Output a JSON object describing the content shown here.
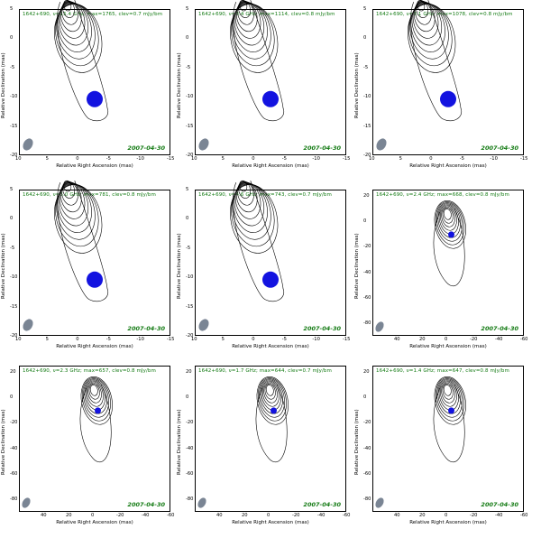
{
  "chart_data": [
    {
      "type": "contour",
      "header": "1642+690, ν=15.4 GHz; max=1765, clev=0.7 mJy/bm",
      "date": "2007-04-30",
      "xlabel": "Relative Right Ascension (mas)",
      "ylabel": "Relative Declination (mas)",
      "xticks": [
        "10",
        "5",
        "0",
        "-5",
        "-10",
        "-15"
      ],
      "yticks": [
        "5",
        "0",
        "-5",
        "-10",
        "-15",
        "-20"
      ],
      "xlim": [
        10,
        -15
      ],
      "ylim": [
        -20,
        5
      ],
      "core_at": [
        -2.5,
        -10.4
      ]
    },
    {
      "type": "contour",
      "header": "1642+690, ν=8.4 GHz; max=1114, clev=0.8 mJy/bm",
      "date": "2007-04-30",
      "xlabel": "Relative Right Ascension (mas)",
      "ylabel": "Relative Declination (mas)",
      "xticks": [
        "10",
        "5",
        "0",
        "-5",
        "-10",
        "-15"
      ],
      "yticks": [
        "5",
        "0",
        "-5",
        "-10",
        "-15",
        "-20"
      ],
      "xlim": [
        10,
        -15
      ],
      "ylim": [
        -20,
        5
      ],
      "core_at": [
        -2.5,
        -10.4
      ]
    },
    {
      "type": "contour",
      "header": "1642+690, ν=8.1 GHz; max=1078, clev=0.8 mJy/bm",
      "date": "2007-04-30",
      "xlabel": "Relative Right Ascension (mas)",
      "ylabel": "Relative Declination (mas)",
      "xticks": [
        "10",
        "5",
        "0",
        "-5",
        "-10",
        "-15"
      ],
      "yticks": [
        "5",
        "0",
        "-5",
        "-10",
        "-15",
        "-20"
      ],
      "xlim": [
        10,
        -15
      ],
      "ylim": [
        -20,
        5
      ],
      "core_at": [
        -2.5,
        -10.4
      ]
    },
    {
      "type": "contour",
      "header": "1642+690, ν=5.0 GHz; max=781, clev=0.8 mJy/bm",
      "date": "2007-04-30",
      "xlabel": "Relative Right Ascension (mas)",
      "ylabel": "Relative Declination (mas)",
      "xticks": [
        "10",
        "5",
        "0",
        "-5",
        "-10",
        "-15"
      ],
      "yticks": [
        "5",
        "0",
        "-5",
        "-10",
        "-15",
        "-20"
      ],
      "xlim": [
        10,
        -15
      ],
      "ylim": [
        -20,
        5
      ],
      "core_at": [
        -2.5,
        -10.4
      ]
    },
    {
      "type": "contour",
      "header": "1642+690, ν=4.6 GHz; max=743, clev=0.7 mJy/bm",
      "date": "2007-04-30",
      "xlabel": "Relative Right Ascension (mas)",
      "ylabel": "Relative Declination (mas)",
      "xticks": [
        "10",
        "5",
        "0",
        "-5",
        "-10",
        "-15"
      ],
      "yticks": [
        "5",
        "0",
        "-5",
        "-10",
        "-15",
        "-20"
      ],
      "xlim": [
        10,
        -15
      ],
      "ylim": [
        -20,
        5
      ],
      "core_at": [
        -2.5,
        -10.4
      ]
    },
    {
      "type": "contour",
      "header": "1642+690, ν=2.4 GHz; max=668, clev=0.8 mJy/bm",
      "date": "2007-04-30",
      "xlabel": "Relative Right Ascension (mas)",
      "ylabel": "Relative Declination (mas)",
      "xticks": [
        "40",
        "20",
        "0",
        "-20",
        "-40",
        "-60"
      ],
      "yticks": [
        "20",
        "0",
        "-20",
        "-40",
        "-60",
        "-80"
      ],
      "xlim": [
        60,
        -60
      ],
      "ylim": [
        -90,
        25
      ],
      "core_at": [
        -2.5,
        -10.4
      ]
    },
    {
      "type": "contour",
      "header": "1642+690, ν=2.3 GHz; max=657, clev=0.8 mJy/bm",
      "date": "2007-04-30",
      "xlabel": "Relative Right Ascension (mas)",
      "ylabel": "Relative Declination (mas)",
      "xticks": [
        "40",
        "20",
        "0",
        "-20",
        "-40",
        "-60"
      ],
      "yticks": [
        "20",
        "0",
        "-20",
        "-40",
        "-60",
        "-80"
      ],
      "xlim": [
        60,
        -60
      ],
      "ylim": [
        -90,
        25
      ],
      "core_at": [
        -2.5,
        -10.4
      ]
    },
    {
      "type": "contour",
      "header": "1642+690, ν=1.7 GHz; max=644, clev=0.7 mJy/bm",
      "date": "2007-04-30",
      "xlabel": "Relative Right Ascension (mas)",
      "ylabel": "Relative Declination (mas)",
      "xticks": [
        "40",
        "20",
        "0",
        "-20",
        "-40",
        "-60"
      ],
      "yticks": [
        "20",
        "0",
        "-20",
        "-40",
        "-60",
        "-80"
      ],
      "xlim": [
        60,
        -60
      ],
      "ylim": [
        -90,
        25
      ],
      "core_at": [
        -2.5,
        -10.4
      ]
    },
    {
      "type": "contour",
      "header": "1642+690, ν=1.4 GHz; max=647, clev=0.8 mJy/bm",
      "date": "2007-04-30",
      "xlabel": "Relative Right Ascension (mas)",
      "ylabel": "Relative Declination (mas)",
      "xticks": [
        "40",
        "20",
        "0",
        "-20",
        "-40",
        "-60"
      ],
      "yticks": [
        "20",
        "0",
        "-20",
        "-40",
        "-60",
        "-80"
      ],
      "xlim": [
        60,
        -60
      ],
      "ylim": [
        -90,
        25
      ],
      "core_at": [
        -2.5,
        -10.4
      ]
    }
  ],
  "colors": {
    "header": "#127a12",
    "core": "#1313e0",
    "beam": "#7a8594",
    "contour": "#000000"
  }
}
